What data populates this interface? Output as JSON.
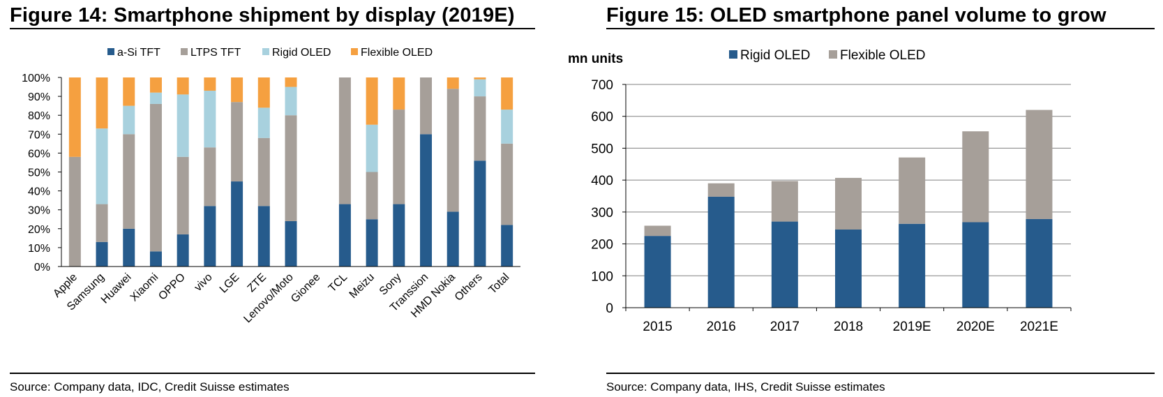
{
  "colors": {
    "asi_tft": "#265b8c",
    "ltps_tft": "#a69f99",
    "rigid_oled": "#a8d1de",
    "flexible_oled": "#f5a040",
    "gridline": "#808080",
    "axis": "#000000"
  },
  "left": {
    "figure_title": "Figure 14: Smartphone shipment by display (2019E)",
    "source": "Source: Company data, IDC, Credit Suisse estimates"
  },
  "right": {
    "figure_title": "Figure 15: OLED smartphone panel volume to grow",
    "source": "Source: Company data, IHS, Credit Suisse estimates"
  },
  "chart_data": [
    {
      "type": "bar",
      "stacked": true,
      "percent": true,
      "title": "Figure 14: Smartphone shipment by display (2019E)",
      "categories": [
        "Apple",
        "Samsung",
        "Huawei",
        "Xiaomi",
        "OPPO",
        "vivo",
        "LGE",
        "ZTE",
        "Lenovo/Moto",
        "Gionee",
        "TCL",
        "Meizu",
        "Sony",
        "Transsion",
        "HMD Nokia",
        "Others",
        "Total"
      ],
      "y_ticks": [
        "0%",
        "10%",
        "20%",
        "30%",
        "40%",
        "50%",
        "60%",
        "70%",
        "80%",
        "90%",
        "100%"
      ],
      "ylim": [
        0,
        100
      ],
      "grid": false,
      "legend_position": "top",
      "series": [
        {
          "name": "a-Si TFT",
          "values": [
            0,
            13,
            20,
            8,
            17,
            32,
            45,
            32,
            24,
            0,
            33,
            25,
            33,
            70,
            29,
            56,
            22
          ]
        },
        {
          "name": "LTPS TFT",
          "values": [
            58,
            20,
            50,
            78,
            41,
            31,
            42,
            36,
            56,
            0,
            67,
            25,
            50,
            30,
            65,
            34,
            43
          ]
        },
        {
          "name": "Rigid OLED",
          "values": [
            0,
            40,
            15,
            6,
            33,
            30,
            0,
            16,
            15,
            0,
            0,
            25,
            0,
            0,
            0,
            9,
            18
          ]
        },
        {
          "name": "Flexible OLED",
          "values": [
            42,
            27,
            15,
            8,
            9,
            7,
            13,
            16,
            5,
            0,
            0,
            25,
            17,
            0,
            6,
            1,
            17
          ]
        }
      ]
    },
    {
      "type": "bar",
      "stacked": true,
      "title": "Figure 15: OLED smartphone panel volume to grow",
      "ylabel": "mn units",
      "categories": [
        "2015",
        "2016",
        "2017",
        "2018",
        "2019E",
        "2020E",
        "2021E"
      ],
      "y_ticks": [
        "0",
        "100",
        "200",
        "300",
        "400",
        "500",
        "600",
        "700"
      ],
      "ylim": [
        0,
        700
      ],
      "grid": true,
      "legend_position": "top",
      "series": [
        {
          "name": "Rigid OLED",
          "values": [
            225,
            348,
            270,
            245,
            263,
            268,
            278
          ]
        },
        {
          "name": "Flexible OLED",
          "values": [
            32,
            42,
            127,
            162,
            208,
            285,
            342
          ]
        }
      ]
    }
  ]
}
